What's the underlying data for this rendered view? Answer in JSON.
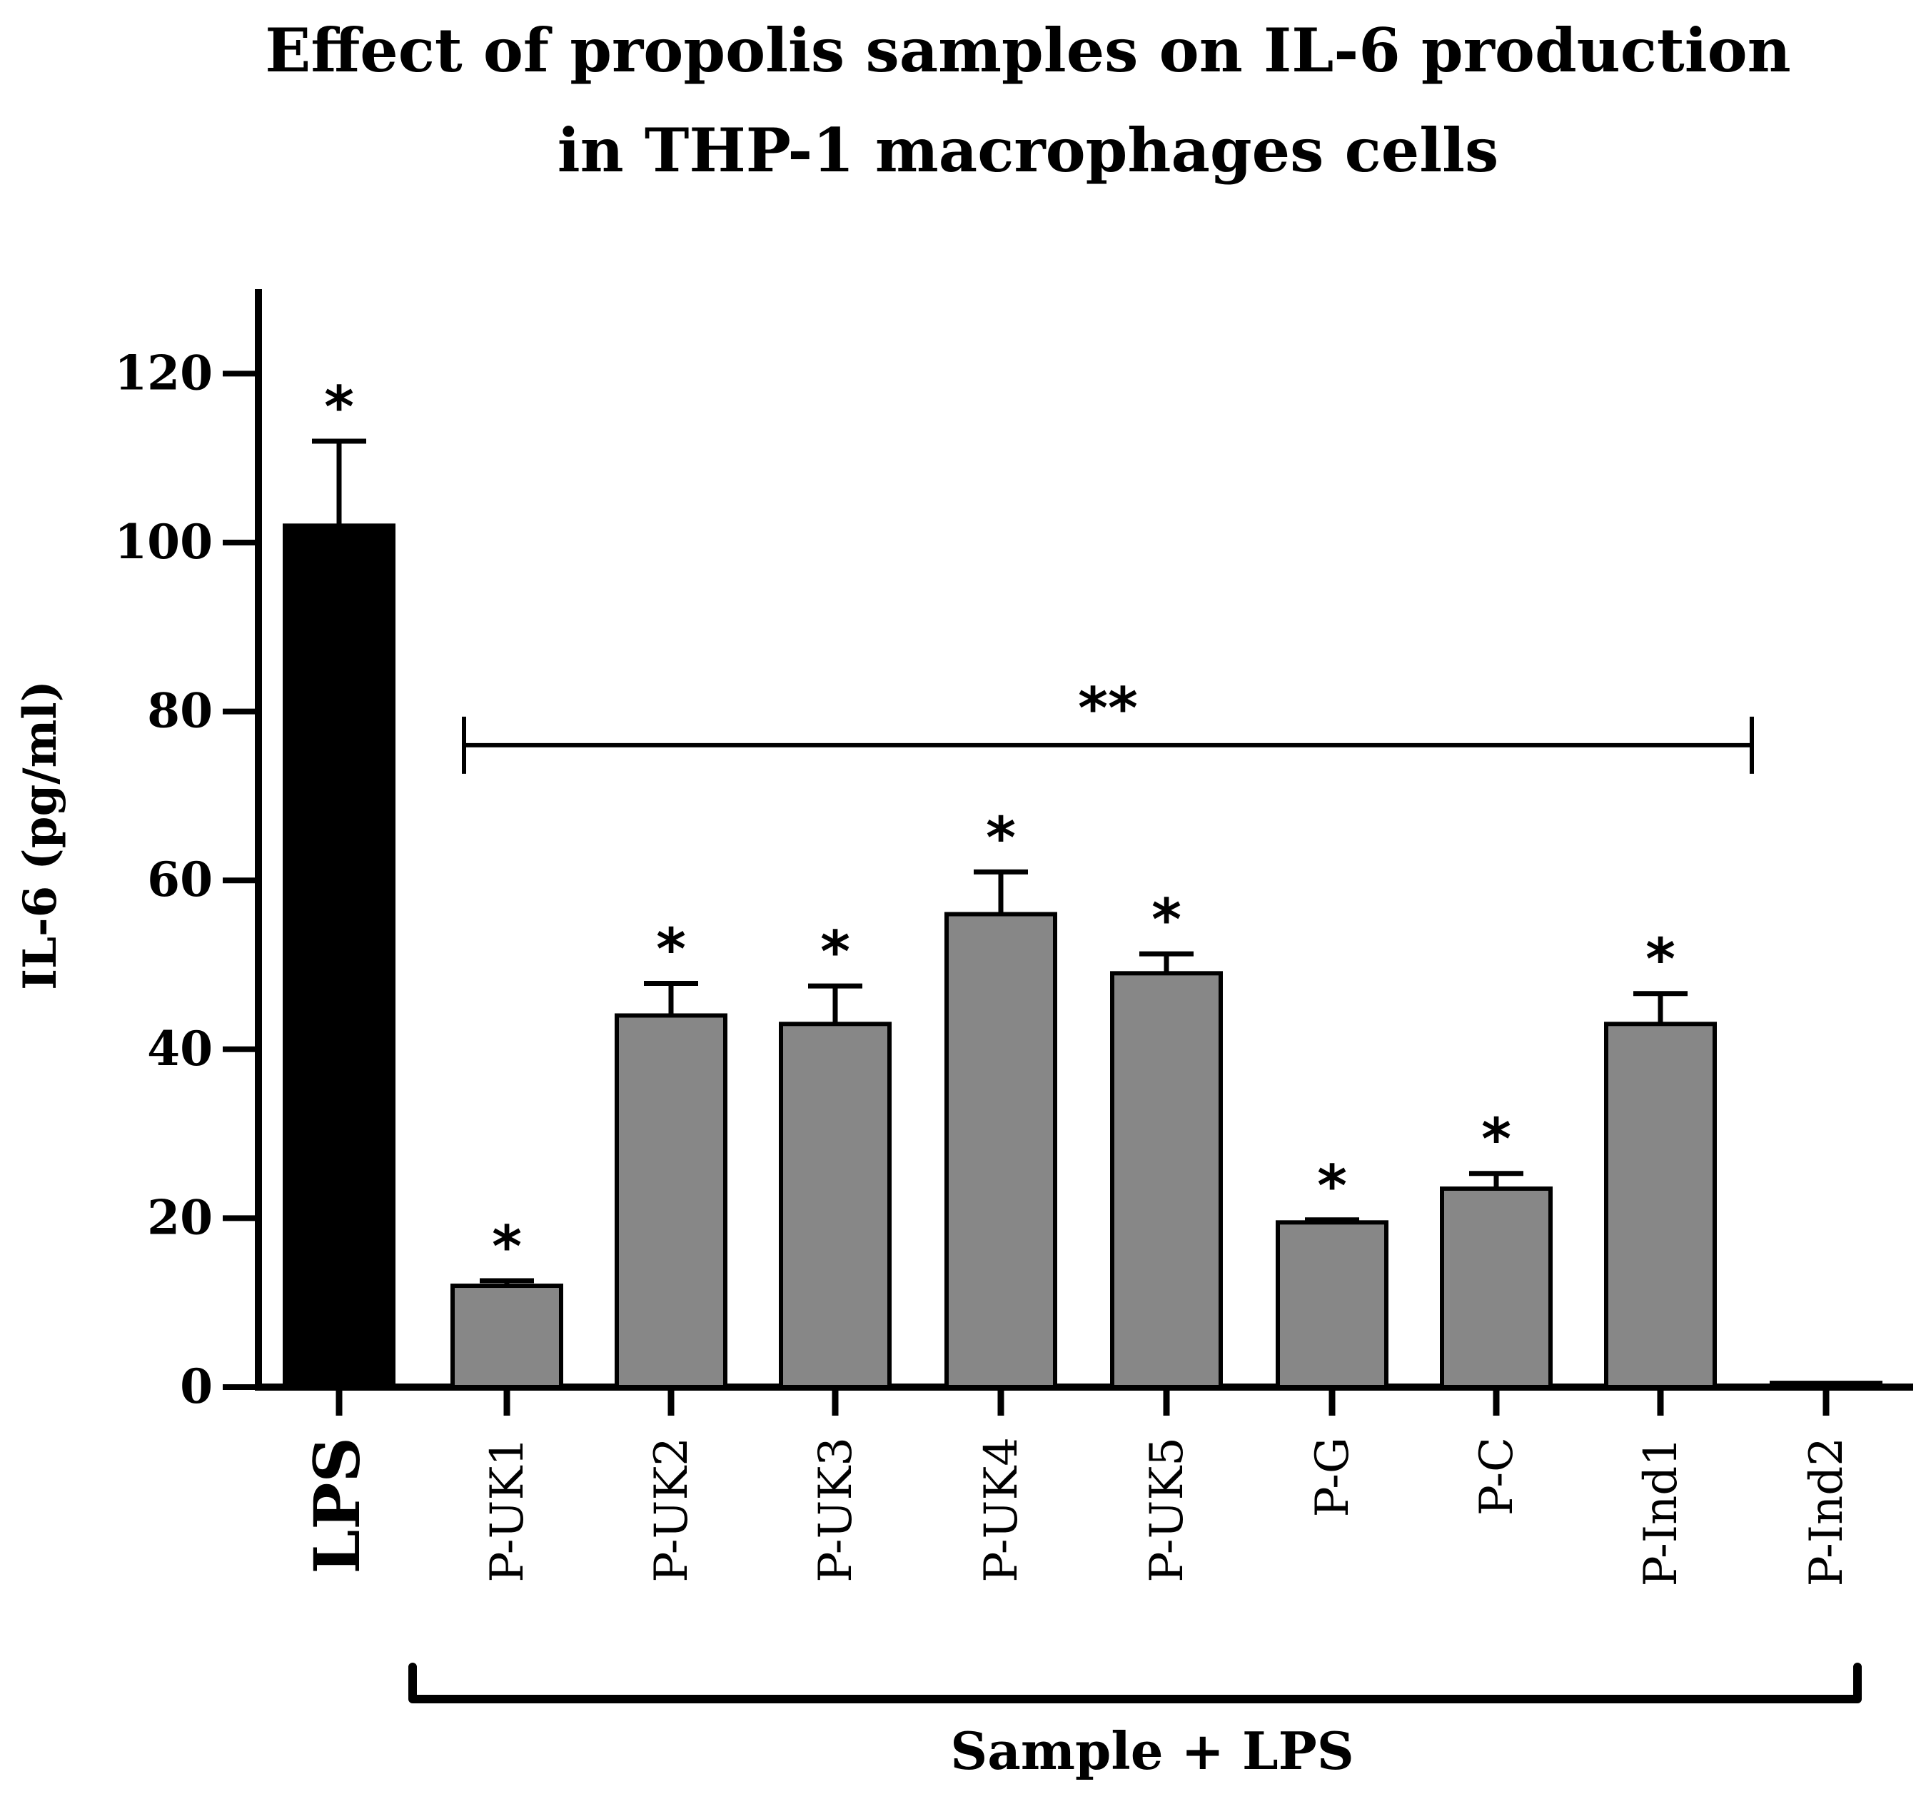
{
  "chart_data": {
    "type": "bar",
    "title_lines": [
      "Effect of propolis samples on  IL-6 production",
      "in THP-1 macrophages cells"
    ],
    "xlabel": "Sample + LPS",
    "ylabel": "IL-6 (pg/ml)",
    "ylim": [
      0,
      130
    ],
    "yticks": [
      0,
      20,
      40,
      60,
      80,
      100,
      120
    ],
    "categories": [
      "LPS",
      "P-UK1",
      "P-UK2",
      "P-UK3",
      "P-UK4",
      "P-UK5",
      "P-G",
      "P-C",
      "P-Ind1",
      "P-Ind2"
    ],
    "values": [
      102,
      12,
      44,
      43,
      56,
      49,
      19.5,
      23.5,
      43,
      0.5
    ],
    "errors": [
      10,
      0.6,
      3.8,
      4.5,
      5,
      2.3,
      0.3,
      1.8,
      3.6,
      0
    ],
    "bar_colors": [
      "#000000",
      "#878787",
      "#878787",
      "#878787",
      "#878787",
      "#878787",
      "#878787",
      "#878787",
      "#878787",
      "#878787"
    ],
    "significance": [
      "*",
      "*",
      "*",
      "*",
      "*",
      "*",
      "*",
      "*",
      "*",
      ""
    ],
    "bracket": {
      "label": "**",
      "from": "P-UK1",
      "to": "P-Ind1",
      "at_value": 76
    },
    "group_bracket": {
      "label": "Sample + LPS",
      "from": "P-UK1",
      "to": "P-Ind2"
    }
  }
}
